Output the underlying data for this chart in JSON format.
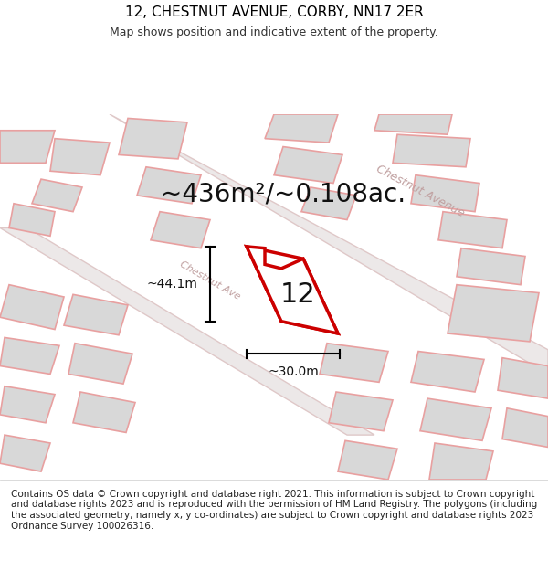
{
  "title_line1": "12, CHESTNUT AVENUE, CORBY, NN17 2ER",
  "title_line2": "Map shows position and indicative extent of the property.",
  "area_text": "~436m²/~0.108ac.",
  "property_number": "12",
  "dim_vertical": "~44.1m",
  "dim_horizontal": "~30.0m",
  "street_label": "Chestnut Avenue",
  "footer_text": "Contains OS data © Crown copyright and database right 2021. This information is subject to Crown copyright and database rights 2023 and is reproduced with the permission of HM Land Registry. The polygons (including the associated geometry, namely x, y co-ordinates) are subject to Crown copyright and database rights 2023 Ordnance Survey 100026316.",
  "bg_color": "#ffffff",
  "map_bg_color": "#f5f5f5",
  "building_fill": "#d8d8d8",
  "building_edge": "#e8a0a0",
  "highlight_edge": "#cc0000",
  "road_color": "#f0f0f0",
  "street_text_color": "#c0a0a0",
  "title_fontsize": 11,
  "subtitle_fontsize": 9,
  "area_fontsize": 20,
  "number_fontsize": 22,
  "dim_fontsize": 10,
  "footer_fontsize": 7.5
}
